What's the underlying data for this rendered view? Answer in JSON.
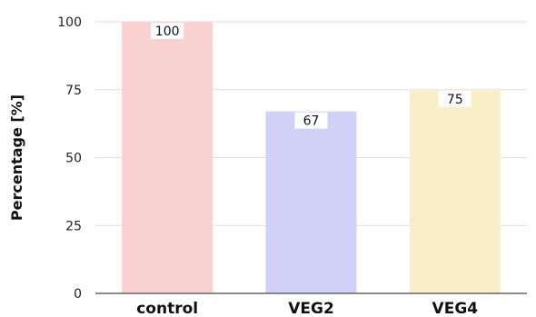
{
  "chart_data": {
    "type": "bar",
    "categories": [
      "control",
      "VEG2",
      "VEG4"
    ],
    "values": [
      100,
      67,
      75
    ],
    "value_labels": [
      "100",
      "67",
      "75"
    ],
    "ylabel": "Percentage [%]",
    "ylim": [
      0,
      100
    ],
    "yticks": [
      "0",
      "25",
      "50",
      "75",
      "100"
    ],
    "grid": true,
    "colors": [
      "#fad1d1",
      "#d1d1f8",
      "#f8efc8"
    ]
  }
}
